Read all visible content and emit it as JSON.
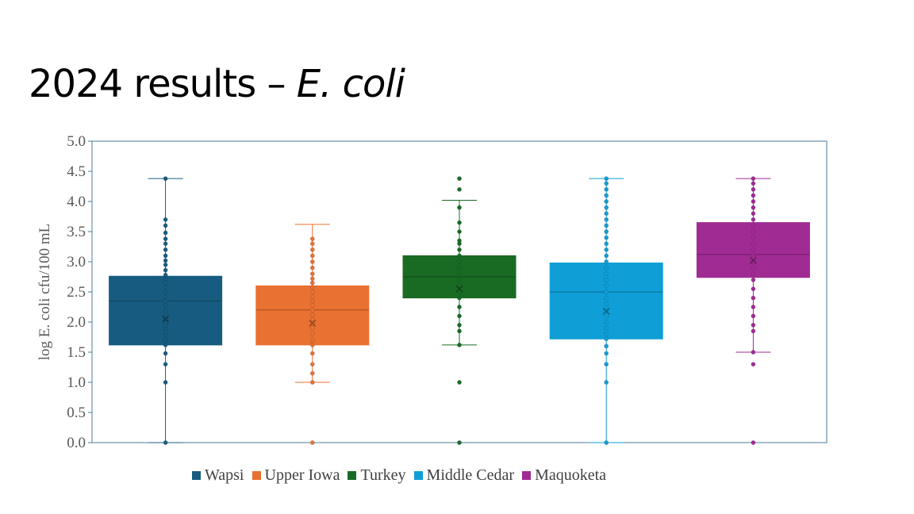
{
  "slide": {
    "title_main": "2024 results – ",
    "title_italic": "E. coli"
  },
  "chart_data": {
    "type": "box",
    "ylabel": "log E. coli cfu/100 mL",
    "xlabel": "",
    "ylim": [
      0,
      5.0
    ],
    "yticks": [
      "0.0",
      "0.5",
      "1.0",
      "1.5",
      "2.0",
      "2.5",
      "3.0",
      "3.5",
      "4.0",
      "4.5",
      "5.0"
    ],
    "grid": false,
    "legend_position": "bottom",
    "series": [
      {
        "name": "Wapsi",
        "color": "#175c80",
        "whisker_low": 0.0,
        "q1": 1.62,
        "median": 2.35,
        "q3": 2.76,
        "whisker_high": 4.38,
        "mean": 2.05,
        "points": [
          0.0,
          1.0,
          1.3,
          1.48,
          1.62,
          1.7,
          1.78,
          1.85,
          1.9,
          1.95,
          2.0,
          2.05,
          2.1,
          2.15,
          2.2,
          2.28,
          2.35,
          2.42,
          2.5,
          2.58,
          2.66,
          2.72,
          2.78,
          2.86,
          2.95,
          3.02,
          3.1,
          3.2,
          3.3,
          3.38,
          3.48,
          3.6,
          3.7,
          4.38
        ]
      },
      {
        "name": "Upper Iowa",
        "color": "#e97132",
        "whisker_low": 1.0,
        "q1": 1.62,
        "median": 2.2,
        "q3": 2.6,
        "whisker_high": 3.62,
        "mean": 1.98,
        "points": [
          0.0,
          1.0,
          1.15,
          1.3,
          1.48,
          1.62,
          1.7,
          1.8,
          1.9,
          1.98,
          2.05,
          2.12,
          2.2,
          2.28,
          2.35,
          2.42,
          2.5,
          2.58,
          2.65,
          2.72,
          2.8,
          2.9,
          3.0,
          3.1,
          3.2,
          3.3,
          3.38
        ]
      },
      {
        "name": "Turkey",
        "color": "#196b24",
        "whisker_low": 1.62,
        "q1": 2.4,
        "median": 2.75,
        "q3": 3.1,
        "whisker_high": 4.02,
        "mean": 2.55,
        "points": [
          0.0,
          1.0,
          1.62,
          1.85,
          1.95,
          2.1,
          2.25,
          2.4,
          2.5,
          2.6,
          2.7,
          2.8,
          2.9,
          3.0,
          3.1,
          3.2,
          3.3,
          3.35,
          3.5,
          3.65,
          3.9,
          4.2,
          4.38
        ]
      },
      {
        "name": "Middle Cedar",
        "color": "#0f9ed5",
        "whisker_low": 0.0,
        "q1": 1.72,
        "median": 2.5,
        "q3": 2.98,
        "whisker_high": 4.38,
        "mean": 2.18,
        "points": [
          0.0,
          1.0,
          1.3,
          1.48,
          1.6,
          1.72,
          1.8,
          1.9,
          2.0,
          2.1,
          2.2,
          2.3,
          2.4,
          2.5,
          2.6,
          2.7,
          2.8,
          2.9,
          3.0,
          3.1,
          3.2,
          3.3,
          3.4,
          3.5,
          3.6,
          3.7,
          3.8,
          3.9,
          4.0,
          4.1,
          4.2,
          4.3,
          4.38
        ]
      },
      {
        "name": "Maquoketa",
        "color": "#a02b93",
        "whisker_low": 1.5,
        "q1": 2.74,
        "median": 3.12,
        "q3": 3.65,
        "whisker_high": 4.38,
        "mean": 3.02,
        "points": [
          0.0,
          1.3,
          1.5,
          1.85,
          1.95,
          2.1,
          2.25,
          2.4,
          2.55,
          2.7,
          2.8,
          2.9,
          3.0,
          3.1,
          3.2,
          3.3,
          3.4,
          3.5,
          3.6,
          3.7,
          3.8,
          3.9,
          4.0,
          4.1,
          4.2,
          4.3,
          4.38
        ]
      }
    ]
  }
}
